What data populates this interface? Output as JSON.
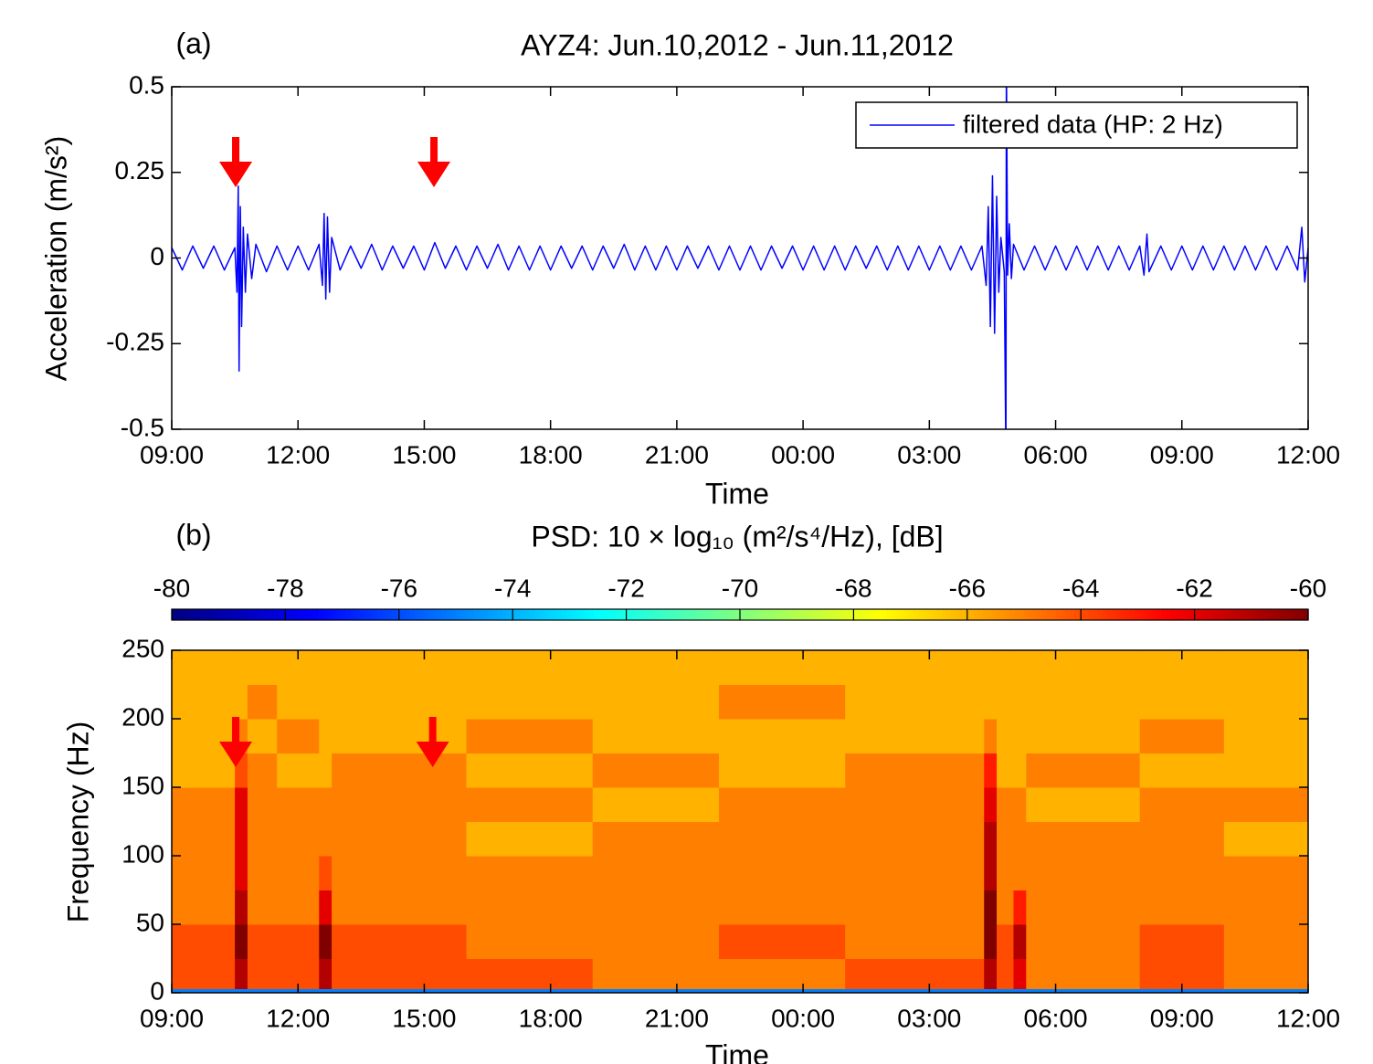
{
  "chart_data": [
    {
      "type": "line",
      "panel_label": "(a)",
      "title": "AYZ4: Jun.10,2012 - Jun.11,2012",
      "x_label": "Time",
      "y_label": "Acceleration (m/s²)",
      "xlim": [
        0,
        27
      ],
      "xticks": [
        {
          "value": 0,
          "label": "09:00"
        },
        {
          "value": 3,
          "label": "12:00"
        },
        {
          "value": 6,
          "label": "15:00"
        },
        {
          "value": 9,
          "label": "18:00"
        },
        {
          "value": 12,
          "label": "21:00"
        },
        {
          "value": 15,
          "label": "00:00"
        },
        {
          "value": 18,
          "label": "03:00"
        },
        {
          "value": 21,
          "label": "06:00"
        },
        {
          "value": 24,
          "label": "09:00"
        },
        {
          "value": 27,
          "label": "12:00"
        }
      ],
      "ylim": [
        -0.5,
        0.5
      ],
      "yticks": [
        -0.5,
        -0.25,
        0,
        0.25,
        0.5
      ],
      "legend": "upper right",
      "arrows": {
        "x": [
          1.52,
          6.23
        ],
        "color": "#ff0000"
      },
      "x": [
        0,
        0.25,
        0.5,
        0.75,
        1,
        1.25,
        1.5,
        1.55,
        1.58,
        1.6,
        1.63,
        1.66,
        1.7,
        1.75,
        1.8,
        1.9,
        2,
        2.25,
        2.5,
        2.75,
        3,
        3.25,
        3.5,
        3.58,
        3.62,
        3.66,
        3.7,
        3.75,
        3.8,
        4,
        4.25,
        4.5,
        4.75,
        5,
        5.25,
        5.5,
        5.75,
        6,
        6.25,
        6.5,
        6.75,
        7,
        7.25,
        7.5,
        7.75,
        8,
        8.25,
        8.5,
        8.75,
        9,
        9.25,
        9.5,
        9.75,
        10,
        10.25,
        10.5,
        10.75,
        11,
        11.25,
        11.5,
        11.75,
        12,
        12.25,
        12.5,
        12.75,
        13,
        13.25,
        13.5,
        13.75,
        14,
        14.25,
        14.5,
        14.75,
        15,
        15.25,
        15.5,
        15.75,
        16,
        16.25,
        16.5,
        16.75,
        17,
        17.25,
        17.5,
        17.75,
        18,
        18.25,
        18.5,
        18.75,
        19,
        19.25,
        19.35,
        19.4,
        19.45,
        19.5,
        19.55,
        19.6,
        19.65,
        19.7,
        19.78,
        19.82,
        19.83,
        19.86,
        19.9,
        19.95,
        20,
        20.25,
        20.5,
        20.75,
        21,
        21.25,
        21.5,
        21.75,
        22,
        22.25,
        22.5,
        22.75,
        23,
        23.1,
        23.17,
        23.22,
        23.5,
        23.75,
        24,
        24.25,
        24.5,
        24.75,
        25,
        25.25,
        25.5,
        25.75,
        26,
        26.25,
        26.5,
        26.75,
        26.85,
        26.92,
        27
      ],
      "series": [
        {
          "name": "filtered data (HP: 2 Hz)",
          "color": "#0000ff",
          "values": [
            0.03,
            -0.035,
            0.035,
            -0.03,
            0.035,
            -0.035,
            0.03,
            -0.1,
            0.21,
            -0.33,
            0.15,
            -0.2,
            0.09,
            -0.1,
            0.07,
            -0.06,
            0.04,
            -0.04,
            0.035,
            -0.035,
            0.035,
            -0.035,
            0.04,
            -0.08,
            0.13,
            -0.12,
            0.12,
            -0.1,
            0.06,
            -0.035,
            0.035,
            -0.03,
            0.04,
            -0.035,
            0.035,
            -0.03,
            0.035,
            -0.035,
            0.045,
            -0.03,
            0.035,
            -0.035,
            0.035,
            -0.03,
            0.04,
            -0.035,
            0.035,
            -0.035,
            0.035,
            -0.035,
            0.035,
            -0.03,
            0.035,
            -0.035,
            0.035,
            -0.03,
            0.04,
            -0.035,
            0.035,
            -0.035,
            0.035,
            -0.035,
            0.035,
            -0.03,
            0.035,
            -0.035,
            0.035,
            -0.035,
            0.035,
            -0.035,
            0.035,
            -0.03,
            0.035,
            -0.035,
            0.035,
            -0.035,
            0.035,
            -0.035,
            0.035,
            -0.03,
            0.035,
            -0.035,
            0.035,
            -0.035,
            0.035,
            -0.035,
            0.035,
            -0.035,
            0.035,
            -0.035,
            0.035,
            -0.08,
            0.15,
            -0.2,
            0.24,
            -0.22,
            0.18,
            -0.1,
            0.06,
            -0.04,
            -0.6,
            0.6,
            -0.05,
            0.1,
            -0.06,
            0.04,
            -0.035,
            0.035,
            -0.035,
            0.035,
            -0.035,
            0.035,
            -0.035,
            0.035,
            -0.035,
            0.035,
            -0.035,
            0.035,
            -0.05,
            0.07,
            -0.04,
            0.035,
            -0.035,
            0.035,
            -0.035,
            0.035,
            -0.035,
            0.035,
            -0.035,
            0.035,
            -0.035,
            0.035,
            -0.035,
            0.035,
            -0.035,
            0.09,
            -0.07,
            0.03
          ]
        }
      ]
    },
    {
      "type": "heatmap",
      "panel_label": "(b)",
      "title": "PSD: 10 × log₁₀ (m²/s⁴/Hz), [dB]",
      "x_label": "Time",
      "y_label": "Frequency (Hz)",
      "xlim": [
        0,
        27
      ],
      "xticks": [
        {
          "value": 0,
          "label": "09:00"
        },
        {
          "value": 3,
          "label": "12:00"
        },
        {
          "value": 6,
          "label": "15:00"
        },
        {
          "value": 9,
          "label": "18:00"
        },
        {
          "value": 12,
          "label": "21:00"
        },
        {
          "value": 15,
          "label": "00:00"
        },
        {
          "value": 18,
          "label": "03:00"
        },
        {
          "value": 21,
          "label": "06:00"
        },
        {
          "value": 24,
          "label": "09:00"
        },
        {
          "value": 27,
          "label": "12:00"
        }
      ],
      "ylim": [
        0,
        250
      ],
      "yticks": [
        0,
        50,
        100,
        150,
        200,
        250
      ],
      "arrows": {
        "x": [
          1.52,
          6.2
        ],
        "color": "#ff0000"
      },
      "colormap": "jet",
      "clim": [
        -80,
        -60
      ],
      "cticks": [
        -80,
        -78,
        -76,
        -74,
        -72,
        -70,
        -68,
        -66,
        -64,
        -62,
        -60
      ],
      "x_edges": [
        0,
        1.5,
        1.8,
        2.5,
        3.5,
        3.8,
        7,
        10,
        13,
        16,
        19.3,
        19.6,
        20,
        20.3,
        23,
        25,
        27
      ],
      "y_edges": [
        0,
        3,
        25,
        50,
        75,
        100,
        125,
        150,
        175,
        200,
        225,
        250
      ],
      "values": [
        [
          -75,
          -75,
          -75,
          -75,
          -75,
          -75,
          -75,
          -75,
          -75,
          -75,
          -75,
          -75,
          -75,
          -75,
          -75,
          -75
        ],
        [
          -64,
          -61,
          -64,
          -64,
          -61,
          -64,
          -64,
          -65,
          -65,
          -64,
          -61,
          -64,
          -62,
          -65,
          -64,
          -65
        ],
        [
          -64,
          -60,
          -64,
          -64,
          -60,
          -64,
          -65,
          -65,
          -64,
          -65,
          -60,
          -64,
          -61,
          -65,
          -64,
          -65
        ],
        [
          -65,
          -61,
          -65,
          -65,
          -62,
          -65,
          -65,
          -65,
          -65,
          -65,
          -60,
          -65,
          -63,
          -65,
          -65,
          -65
        ],
        [
          -65,
          -62,
          -65,
          -65,
          -64,
          -65,
          -65,
          -65,
          -65,
          -65,
          -61,
          -65,
          -65,
          -65,
          -65,
          -65
        ],
        [
          -65,
          -62,
          -65,
          -65,
          -65,
          -65,
          -66,
          -65,
          -65,
          -65,
          -61,
          -65,
          -65,
          -65,
          -65,
          -66
        ],
        [
          -65,
          -62,
          -65,
          -65,
          -65,
          -65,
          -65,
          -66,
          -65,
          -65,
          -62,
          -65,
          -65,
          -66,
          -65,
          -65
        ],
        [
          -66,
          -64,
          -65,
          -66,
          -66,
          -65,
          -66,
          -65,
          -66,
          -65,
          -63,
          -66,
          -66,
          -65,
          -66,
          -66
        ],
        [
          -66,
          -65,
          -66,
          -65,
          -66,
          -66,
          -65,
          -66,
          -66,
          -66,
          -65,
          -66,
          -66,
          -66,
          -65,
          -66
        ],
        [
          -66,
          -66,
          -65,
          -66,
          -66,
          -66,
          -66,
          -66,
          -65,
          -66,
          -66,
          -66,
          -66,
          -66,
          -66,
          -66
        ],
        [
          -66,
          -66,
          -66,
          -66,
          -66,
          -66,
          -66,
          -66,
          -66,
          -66,
          -66,
          -66,
          -66,
          -66,
          -66,
          -66
        ]
      ]
    }
  ]
}
